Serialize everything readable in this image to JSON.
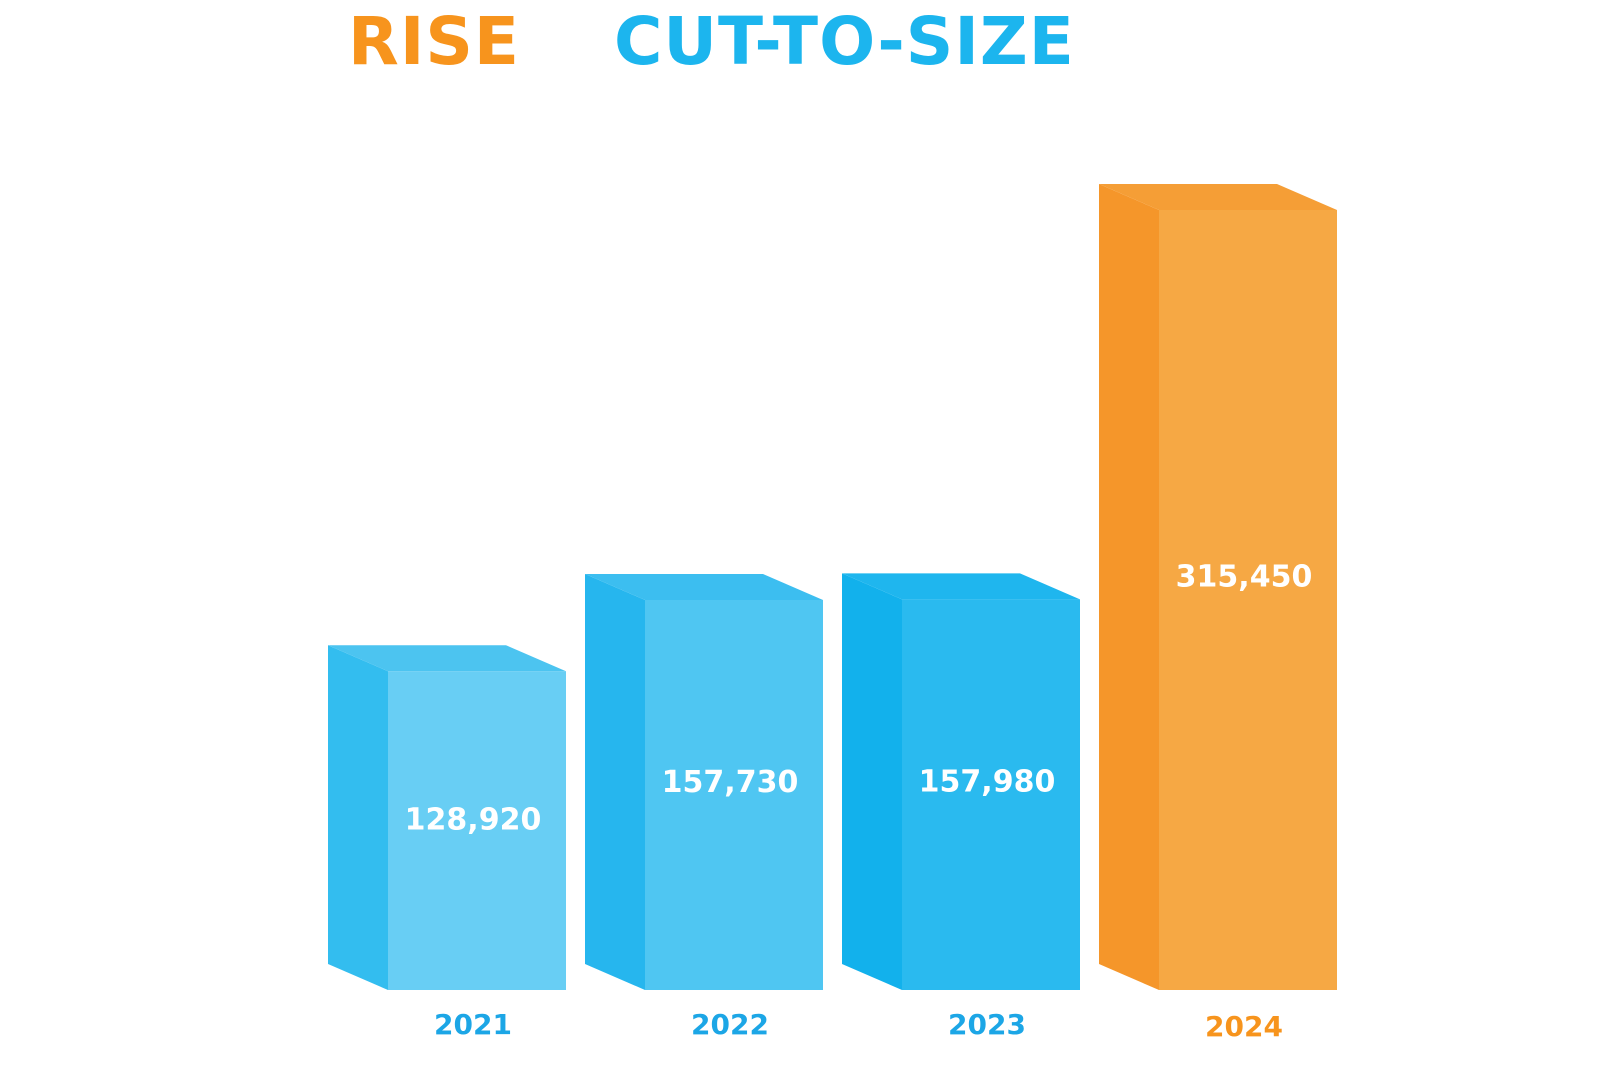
{
  "header": {
    "word1": "RISE",
    "word2": "CUT-TO-SIZE"
  },
  "colors": {
    "orange": "#F7941D",
    "blue": "#1CB5EE"
  },
  "chart_data": {
    "type": "bar",
    "categories": [
      "2021",
      "2022",
      "2023",
      "2024"
    ],
    "values": [
      128920,
      157730,
      157980,
      315450
    ],
    "value_labels": [
      "128,920",
      "157,730",
      "157,980",
      "315,450"
    ],
    "ylim": [
      0,
      330000
    ],
    "grid": false,
    "style": "3d-box"
  }
}
